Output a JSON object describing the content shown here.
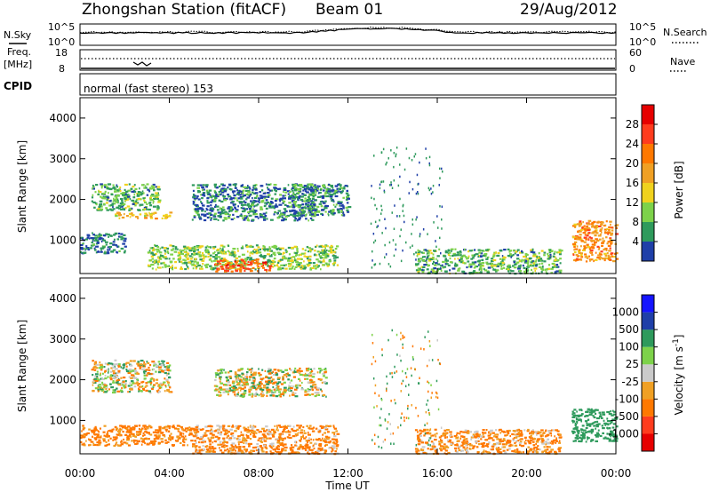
{
  "header": {
    "station": "Zhongshan Station (fitACF)",
    "beam": "Beam 01",
    "date": "29/Aug/2012"
  },
  "status_panels": {
    "nsky_label": "N.Sky",
    "nsky_top": "10^5",
    "nsky_bottom": "10^0",
    "nsearch_label": "N.Search",
    "nsearch_top": "10^5",
    "nsearch_bottom": "10^0",
    "freq_label": "Freq.",
    "freq_unit": "[MHz]",
    "freq_top": "18",
    "freq_bottom": "8",
    "nave_label": "Nave",
    "nave_top": "60",
    "nave_bottom": "0",
    "cpid_label": "CPID",
    "cpid_value": "normal (fast stereo) 153"
  },
  "colors": {
    "power_scale": [
      "#1414ff",
      "#1f3fa8",
      "#2e9a5c",
      "#7dd24a",
      "#f0d21e",
      "#f0a024",
      "#ff7800",
      "#ff3c1e",
      "#e60000"
    ],
    "velocity_scale": [
      "#e60000",
      "#ff3c1e",
      "#ff7800",
      "#f0a024",
      "#cacaca",
      "#cacaca",
      "#7dd24a",
      "#2e9a5c",
      "#1f3fa8",
      "#1414ff"
    ]
  },
  "chart_data": [
    {
      "type": "heatmap",
      "title": "Power",
      "ylabel": "Slant Range [km]",
      "xlabel": "",
      "ylim": [
        180,
        4500
      ],
      "yticks": [
        "1000",
        "2000",
        "3000",
        "4000"
      ],
      "colorbar_label": "Power [dB]",
      "colorbar_ticks": [
        "4",
        "8",
        "12",
        "16",
        "20",
        "24",
        "28"
      ],
      "regions": [
        {
          "time": "00:30-03:30",
          "range_km": [
            1750,
            2400
          ],
          "power_db": 10
        },
        {
          "time": "01:30-04:00",
          "range_km": [
            1550,
            1700
          ],
          "power_db": 18
        },
        {
          "time": "00:00-02:00",
          "range_km": [
            700,
            1200
          ],
          "power_db": 6
        },
        {
          "time": "03:00-11:30",
          "range_km": [
            300,
            900
          ],
          "power_db": 12
        },
        {
          "time": "06:00-08:30",
          "range_km": [
            250,
            550
          ],
          "power_db": 26
        },
        {
          "time": "05:00-10:30",
          "range_km": [
            1500,
            2400
          ],
          "power_db": 7
        },
        {
          "time": "09:30-12:00",
          "range_km": [
            1600,
            2400
          ],
          "power_db": 8
        },
        {
          "time": "15:00-21:30",
          "range_km": [
            200,
            800
          ],
          "power_db": 10
        },
        {
          "time": "22:00-24:00",
          "range_km": [
            500,
            1500
          ],
          "power_db": 22
        }
      ]
    },
    {
      "type": "heatmap",
      "title": "Velocity",
      "ylabel": "Slant Range [km]",
      "xlabel": "Time UT",
      "ylim": [
        180,
        4500
      ],
      "yticks": [
        "1000",
        "2000",
        "3000",
        "4000"
      ],
      "xticks": [
        "00:00",
        "04:00",
        "08:00",
        "12:00",
        "16:00",
        "20:00",
        "00:00"
      ],
      "colorbar_label": "Velocity [m s^-1]",
      "colorbar_ticks": [
        "1000",
        "500",
        "100",
        "25",
        "-25",
        "-100",
        "-500",
        "-1000"
      ],
      "regions": [
        {
          "time": "00:30-04:00",
          "range_km": [
            1700,
            2500
          ],
          "velocity": 0
        },
        {
          "time": "00:00-05:00",
          "range_km": [
            400,
            900
          ],
          "velocity": -200
        },
        {
          "time": "05:00-11:30",
          "range_km": [
            200,
            900
          ],
          "velocity": -150
        },
        {
          "time": "06:00-11:00",
          "range_km": [
            1600,
            2300
          ],
          "velocity": 0
        },
        {
          "time": "15:00-21:30",
          "range_km": [
            200,
            800
          ],
          "velocity": -150
        },
        {
          "time": "22:00-24:00",
          "range_km": [
            500,
            1300
          ],
          "velocity": 300
        }
      ]
    }
  ]
}
